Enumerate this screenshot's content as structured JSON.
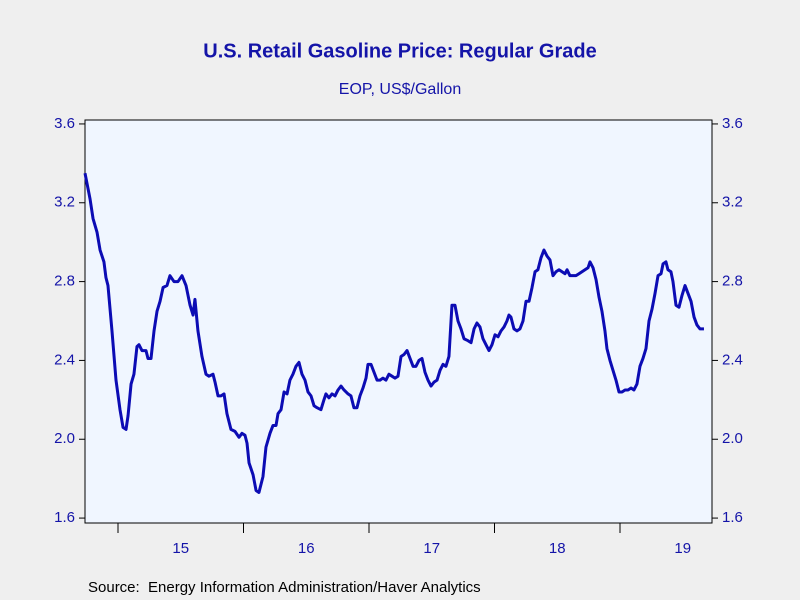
{
  "chart_data": {
    "type": "line",
    "title": "U.S. Retail Gasoline Price: Regular Grade",
    "subtitle": "EOP, US$/Gallon",
    "source": "Source:  Energy Information Administration/Haver Analytics",
    "color": "#0c0cb4",
    "xlim": [
      2014.737,
      2019.733
    ],
    "xticks": [
      {
        "value": 2015.5,
        "label": "15"
      },
      {
        "value": 2016.5,
        "label": "16"
      },
      {
        "value": 2017.5,
        "label": "17"
      },
      {
        "value": 2018.5,
        "label": "18"
      },
      {
        "value": 2019.5,
        "label": "19"
      }
    ],
    "x_boundary_ticks": [
      2015,
      2016,
      2017,
      2018,
      2019
    ],
    "ylim": [
      1.575,
      3.62
    ],
    "yticks": [
      1.6,
      {
        "value": 2,
        "label": "2.0"
      },
      2.4,
      2.8,
      3.2,
      3.6
    ],
    "x": [
      2014.737,
      2014.777,
      2014.801,
      2014.833,
      2014.857,
      2014.888,
      2014.904,
      2014.92,
      2014.952,
      2014.984,
      2015.016,
      2015.04,
      2015.064,
      2015.08,
      2015.104,
      2015.127,
      2015.151,
      2015.167,
      2015.191,
      2015.223,
      2015.239,
      2015.263,
      2015.287,
      2015.311,
      2015.335,
      2015.359,
      2015.39,
      2015.414,
      2015.446,
      2015.478,
      2015.51,
      2015.542,
      2015.574,
      2015.598,
      2015.613,
      2015.637,
      2015.669,
      2015.701,
      2015.725,
      2015.757,
      2015.773,
      2015.797,
      2015.821,
      2015.845,
      2015.868,
      2015.9,
      2015.932,
      2015.964,
      2015.988,
      2016.012,
      2016.028,
      2016.044,
      2016.076,
      2016.1,
      2016.123,
      2016.155,
      2016.179,
      2016.211,
      2016.235,
      2016.259,
      2016.275,
      2016.299,
      2016.323,
      2016.347,
      2016.37,
      2016.394,
      2016.418,
      2016.442,
      2016.466,
      2016.49,
      2016.514,
      2016.538,
      2016.562,
      2016.586,
      2016.617,
      2016.641,
      2016.657,
      2016.681,
      2016.705,
      2016.729,
      2016.753,
      2016.777,
      2016.801,
      2016.833,
      2016.856,
      2016.88,
      2016.904,
      2016.928,
      2016.952,
      2016.976,
      2016.992,
      2017.016,
      2017.04,
      2017.064,
      2017.088,
      2017.111,
      2017.135,
      2017.159,
      2017.183,
      2017.207,
      2017.231,
      2017.255,
      2017.279,
      2017.303,
      2017.327,
      2017.351,
      2017.374,
      2017.398,
      2017.422,
      2017.446,
      2017.47,
      2017.494,
      2017.518,
      2017.542,
      2017.566,
      2017.59,
      2017.613,
      2017.637,
      2017.661,
      2017.685,
      2017.709,
      2017.733,
      2017.757,
      2017.789,
      2017.813,
      2017.837,
      2017.86,
      2017.884,
      2017.908,
      2017.932,
      2017.956,
      2017.98,
      2018.004,
      2018.028,
      2018.052,
      2018.076,
      2018.099,
      2018.115,
      2018.131,
      2018.155,
      2018.179,
      2018.203,
      2018.227,
      2018.251,
      2018.275,
      2018.299,
      2018.323,
      2018.346,
      2018.37,
      2018.394,
      2018.418,
      2018.442,
      2018.466,
      2018.49,
      2018.514,
      2018.538,
      2018.562,
      2018.578,
      2018.601,
      2018.625,
      2018.649,
      2018.673,
      2018.697,
      2018.721,
      2018.745,
      2018.761,
      2018.785,
      2018.809,
      2018.833,
      2018.856,
      2018.88,
      2018.896,
      2018.92,
      2018.944,
      2018.968,
      2018.992,
      2019.016,
      2019.04,
      2019.064,
      2019.088,
      2019.111,
      2019.135,
      2019.159,
      2019.183,
      2019.207,
      2019.231,
      2019.255,
      2019.279,
      2019.303,
      2019.327,
      2019.343,
      2019.366,
      2019.382,
      2019.406,
      2019.422,
      2019.446,
      2019.47,
      2019.494,
      2019.518,
      2019.542,
      2019.566,
      2019.59,
      2019.613,
      2019.637,
      2019.669
    ],
    "values": [
      3.35,
      3.22,
      3.12,
      3.05,
      2.96,
      2.9,
      2.82,
      2.78,
      2.55,
      2.3,
      2.15,
      2.06,
      2.05,
      2.12,
      2.28,
      2.33,
      2.47,
      2.48,
      2.45,
      2.45,
      2.41,
      2.41,
      2.55,
      2.65,
      2.7,
      2.77,
      2.78,
      2.83,
      2.8,
      2.8,
      2.83,
      2.78,
      2.68,
      2.63,
      2.71,
      2.55,
      2.42,
      2.33,
      2.32,
      2.33,
      2.29,
      2.22,
      2.22,
      2.23,
      2.13,
      2.05,
      2.04,
      2.01,
      2.03,
      2.02,
      1.98,
      1.88,
      1.82,
      1.74,
      1.73,
      1.81,
      1.96,
      2.03,
      2.07,
      2.07,
      2.13,
      2.15,
      2.24,
      2.23,
      2.3,
      2.33,
      2.37,
      2.39,
      2.33,
      2.3,
      2.24,
      2.22,
      2.17,
      2.16,
      2.15,
      2.2,
      2.23,
      2.21,
      2.23,
      2.22,
      2.25,
      2.27,
      2.25,
      2.23,
      2.22,
      2.16,
      2.16,
      2.22,
      2.26,
      2.31,
      2.38,
      2.38,
      2.34,
      2.3,
      2.3,
      2.31,
      2.3,
      2.33,
      2.32,
      2.31,
      2.32,
      2.42,
      2.43,
      2.45,
      2.41,
      2.37,
      2.37,
      2.4,
      2.41,
      2.34,
      2.3,
      2.27,
      2.29,
      2.3,
      2.35,
      2.38,
      2.37,
      2.42,
      2.68,
      2.68,
      2.6,
      2.56,
      2.51,
      2.5,
      2.49,
      2.56,
      2.59,
      2.57,
      2.51,
      2.48,
      2.45,
      2.48,
      2.53,
      2.52,
      2.55,
      2.57,
      2.6,
      2.63,
      2.62,
      2.56,
      2.55,
      2.56,
      2.6,
      2.7,
      2.7,
      2.77,
      2.85,
      2.86,
      2.92,
      2.96,
      2.93,
      2.91,
      2.83,
      2.85,
      2.86,
      2.85,
      2.84,
      2.86,
      2.83,
      2.83,
      2.83,
      2.84,
      2.85,
      2.86,
      2.87,
      2.9,
      2.87,
      2.81,
      2.72,
      2.65,
      2.55,
      2.46,
      2.4,
      2.35,
      2.3,
      2.24,
      2.24,
      2.25,
      2.25,
      2.26,
      2.25,
      2.28,
      2.37,
      2.41,
      2.46,
      2.6,
      2.66,
      2.74,
      2.83,
      2.84,
      2.89,
      2.9,
      2.86,
      2.85,
      2.8,
      2.68,
      2.67,
      2.73,
      2.78,
      2.74,
      2.7,
      2.62,
      2.58,
      2.56,
      2.56
    ]
  }
}
